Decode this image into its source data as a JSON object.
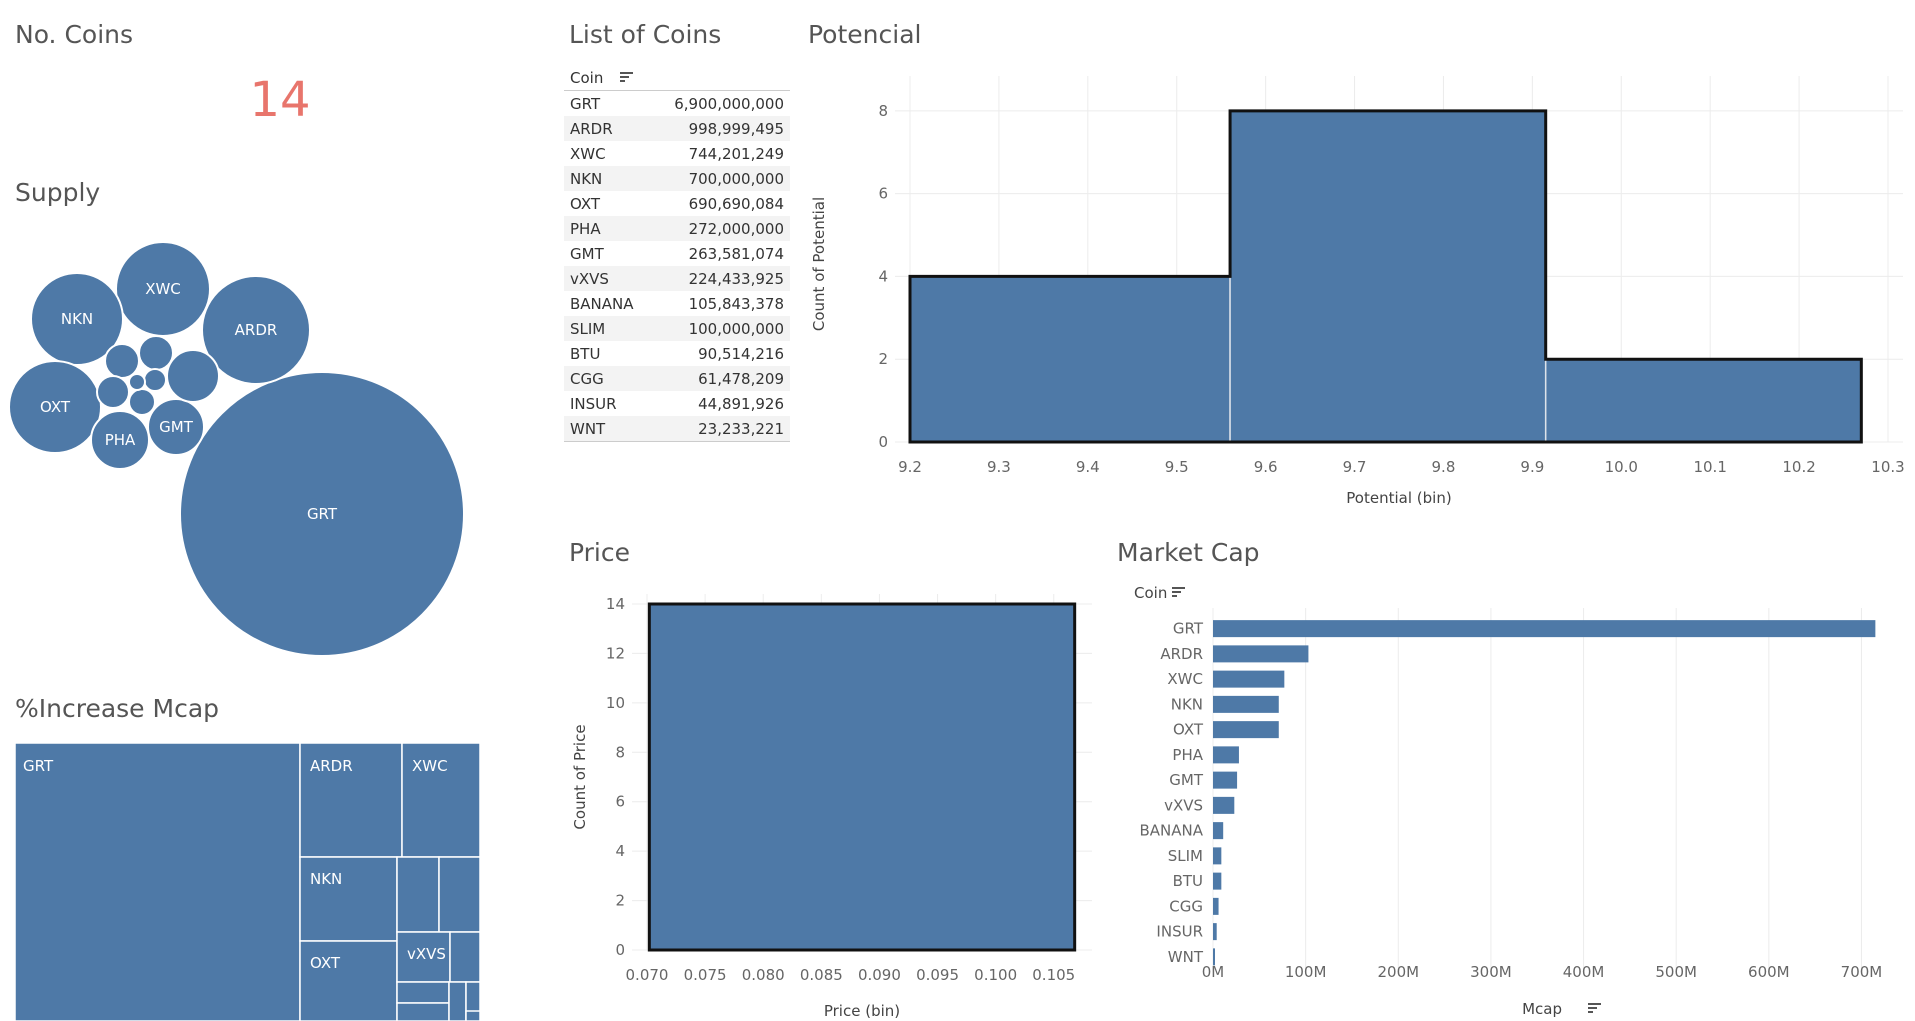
{
  "no_coins": {
    "title": "No. Coins",
    "value": "14",
    "value_color": "#e8756c"
  },
  "supply": {
    "title": "Supply",
    "bubble_color": "#4e79a7",
    "bubbles": [
      {
        "label": "GRT"
      },
      {
        "label": "ARDR"
      },
      {
        "label": "XWC"
      },
      {
        "label": "NKN"
      },
      {
        "label": "OXT"
      },
      {
        "label": "PHA"
      },
      {
        "label": "GMT"
      }
    ]
  },
  "list": {
    "title": "List of Coins",
    "header": "Coin",
    "sort_icon": "sort-descending-icon",
    "rows": [
      {
        "coin": "GRT",
        "value": "6,900,000,000"
      },
      {
        "coin": "ARDR",
        "value": "998,999,495"
      },
      {
        "coin": "XWC",
        "value": "744,201,249"
      },
      {
        "coin": "NKN",
        "value": "700,000,000"
      },
      {
        "coin": "OXT",
        "value": "690,690,084"
      },
      {
        "coin": "PHA",
        "value": "272,000,000"
      },
      {
        "coin": "GMT",
        "value": "263,581,074"
      },
      {
        "coin": "vXVS",
        "value": "224,433,925"
      },
      {
        "coin": "BANANA",
        "value": "105,843,378"
      },
      {
        "coin": "SLIM",
        "value": "100,000,000"
      },
      {
        "coin": "BTU",
        "value": "90,514,216"
      },
      {
        "coin": "CGG",
        "value": "61,478,209"
      },
      {
        "coin": "INSUR",
        "value": "44,891,926"
      },
      {
        "coin": "WNT",
        "value": "23,233,221"
      }
    ]
  },
  "potencial": {
    "title": "Potencial",
    "bar_color": "#4e79a7"
  },
  "increase_mcap": {
    "title": "%Increase Mcap",
    "tile_color": "#4e79a7",
    "tiles": [
      {
        "label": "GRT"
      },
      {
        "label": "ARDR"
      },
      {
        "label": "XWC"
      },
      {
        "label": "NKN"
      },
      {
        "label": "OXT"
      },
      {
        "label": "vXVS"
      }
    ]
  },
  "price": {
    "title": "Price",
    "bar_color": "#4e79a7"
  },
  "market_cap": {
    "title": "Market Cap",
    "header": "Coin",
    "bar_color": "#4e79a7",
    "sort_icon": "sort-descending-icon"
  },
  "chart_data": [
    {
      "type": "bar",
      "title": "Potencial",
      "xlabel": "Potential (bin)",
      "ylabel": "Count of Potential",
      "bins": [
        {
          "from": 9.2,
          "to": 9.56,
          "count": 4
        },
        {
          "from": 9.56,
          "to": 9.915,
          "count": 8
        },
        {
          "from": 9.915,
          "to": 10.27,
          "count": 2
        }
      ],
      "xlim": [
        9.2,
        10.3
      ],
      "ylim": [
        0,
        8.6
      ],
      "xticks": [
        "9.2",
        "9.3",
        "9.4",
        "9.5",
        "9.6",
        "9.7",
        "9.8",
        "9.9",
        "10.0",
        "10.1",
        "10.2",
        "10.3"
      ],
      "yticks": [
        "0",
        "2",
        "4",
        "6",
        "8"
      ],
      "grid": true
    },
    {
      "type": "bar",
      "title": "Price",
      "xlabel": "Price (bin)",
      "ylabel": "Count of Price",
      "bins": [
        {
          "from": 0.0702,
          "to": 0.1068,
          "count": 14
        }
      ],
      "xlim": [
        0.07,
        0.107
      ],
      "ylim": [
        0,
        14
      ],
      "xticks": [
        "0.070",
        "0.075",
        "0.080",
        "0.085",
        "0.090",
        "0.095",
        "0.100",
        "0.105"
      ],
      "yticks": [
        "0",
        "2",
        "4",
        "6",
        "8",
        "10",
        "12",
        "14"
      ],
      "grid": true
    },
    {
      "type": "bar",
      "orientation": "horizontal",
      "title": "Market Cap",
      "xlabel": "Mcap",
      "ylabel": "Coin",
      "categories": [
        "GRT",
        "ARDR",
        "XWC",
        "NKN",
        "OXT",
        "PHA",
        "GMT",
        "vXVS",
        "BANANA",
        "SLIM",
        "BTU",
        "CGG",
        "INSUR",
        "WNT"
      ],
      "values": [
        715,
        103,
        77,
        71,
        71,
        28,
        26,
        23,
        11,
        9,
        9,
        6,
        4,
        2
      ],
      "unit": "M",
      "xlim": [
        0,
        720
      ],
      "xticks": [
        "0M",
        "100M",
        "200M",
        "300M",
        "400M",
        "500M",
        "600M",
        "700M"
      ],
      "grid": true
    },
    {
      "type": "bubble",
      "title": "Supply",
      "categories": [
        "GRT",
        "ARDR",
        "XWC",
        "NKN",
        "OXT",
        "PHA",
        "GMT",
        "vXVS",
        "BANANA",
        "SLIM",
        "BTU",
        "CGG",
        "INSUR",
        "WNT"
      ],
      "values": [
        6900000000,
        998999495,
        744201249,
        700000000,
        690690084,
        272000000,
        263581074,
        224433925,
        105843378,
        100000000,
        90514216,
        61478209,
        44891926,
        23233221
      ]
    },
    {
      "type": "treemap",
      "title": "%Increase Mcap",
      "categories": [
        "GRT",
        "ARDR",
        "XWC",
        "NKN",
        "OXT",
        "vXVS"
      ]
    }
  ]
}
